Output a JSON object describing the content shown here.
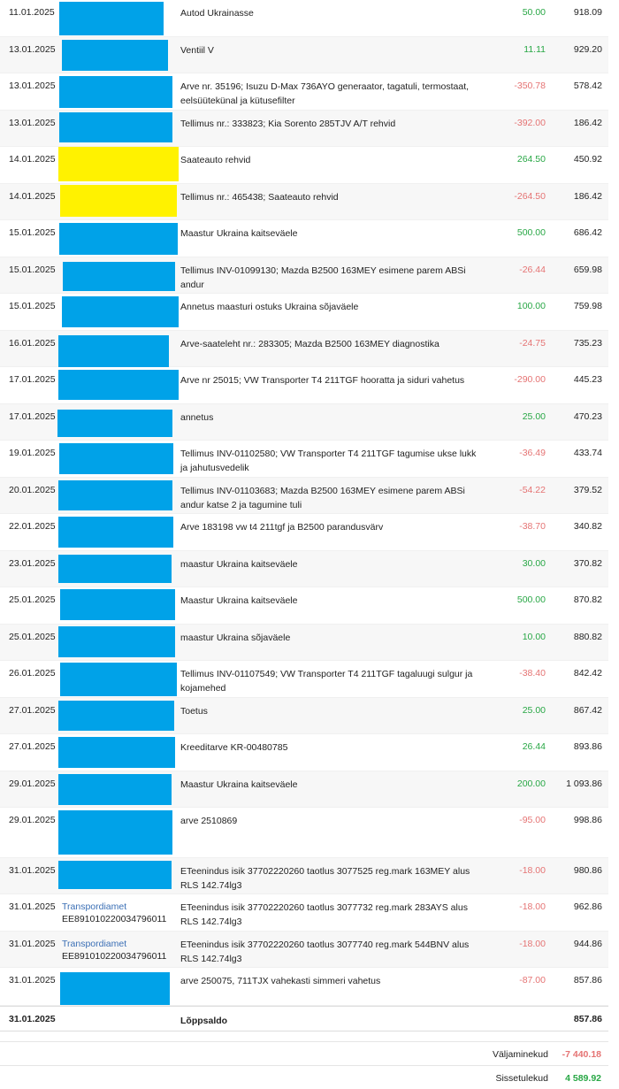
{
  "transactions": [
    {
      "date": "11.01.2025",
      "description": "Autod Ukrainasse",
      "amount": "50.00",
      "direction": "in",
      "balance": "918.09",
      "redaction": "#00a2e8"
    },
    {
      "date": "13.01.2025",
      "description": "Ventiil V",
      "amount": "11.11",
      "direction": "in",
      "balance": "929.20",
      "redaction": "#00a2e8"
    },
    {
      "date": "13.01.2025",
      "description": "Arve nr. 35196; Isuzu D-Max 736AYO generaator, tagatuli, termostaat, eelsüütekünal ja kütusefilter",
      "amount": "-350.78",
      "direction": "out",
      "balance": "578.42",
      "redaction": "#00a2e8"
    },
    {
      "date": "13.01.2025",
      "description": "Tellimus nr.: 333823; Kia Sorento 285TJV A/T rehvid",
      "amount": "-392.00",
      "direction": "out",
      "balance": "186.42",
      "redaction": "#00a2e8"
    },
    {
      "date": "14.01.2025",
      "description": "Saateauto rehvid",
      "amount": "264.50",
      "direction": "in",
      "balance": "450.92",
      "redaction": "#fff200"
    },
    {
      "date": "14.01.2025",
      "description": "Tellimus nr.: 465438; Saateauto rehvid",
      "amount": "-264.50",
      "direction": "out",
      "balance": "186.42",
      "redaction": "#fff200"
    },
    {
      "date": "15.01.2025",
      "description": "Maastur Ukraina kaitseväele",
      "amount": "500.00",
      "direction": "in",
      "balance": "686.42",
      "redaction": "#00a2e8"
    },
    {
      "date": "15.01.2025",
      "description": "Tellimus INV-01099130; Mazda B2500 163MEY esimene parem ABSi andur",
      "amount": "-26.44",
      "direction": "out",
      "balance": "659.98",
      "redaction": "#00a2e8"
    },
    {
      "date": "15.01.2025",
      "description": "Annetus maasturi ostuks Ukraina sõjaväele",
      "amount": "100.00",
      "direction": "in",
      "balance": "759.98",
      "redaction": "#00a2e8"
    },
    {
      "date": "16.01.2025",
      "description": "Arve-saateleht nr.: 283305; Mazda B2500 163MEY diagnostika",
      "amount": "-24.75",
      "direction": "out",
      "balance": "735.23",
      "redaction": "#00a2e8"
    },
    {
      "date": "17.01.2025",
      "description": "Arve nr 25015; VW Transporter T4 211TGF hooratta ja siduri vahetus",
      "amount": "-290.00",
      "direction": "out",
      "balance": "445.23",
      "redaction": "#00a2e8"
    },
    {
      "date": "17.01.2025",
      "description": "annetus",
      "amount": "25.00",
      "direction": "in",
      "balance": "470.23",
      "redaction": "#00a2e8"
    },
    {
      "date": "19.01.2025",
      "description": "Tellimus INV-01102580; VW Transporter T4 211TGF tagumise ukse lukk ja jahutusvedelik",
      "amount": "-36.49",
      "direction": "out",
      "balance": "433.74",
      "redaction": "#00a2e8"
    },
    {
      "date": "20.01.2025",
      "description": "Tellimus INV-01103683; Mazda B2500 163MEY esimene parem ABSi andur katse 2 ja tagumine tuli",
      "amount": "-54.22",
      "direction": "out",
      "balance": "379.52",
      "redaction": "#00a2e8"
    },
    {
      "date": "22.01.2025",
      "description": "Arve 183198 vw t4 211tgf ja B2500 parandusvärv",
      "amount": "-38.70",
      "direction": "out",
      "balance": "340.82",
      "redaction": "#00a2e8"
    },
    {
      "date": "23.01.2025",
      "description": "maastur Ukraina kaitseväele",
      "amount": "30.00",
      "direction": "in",
      "balance": "370.82",
      "redaction": "#00a2e8"
    },
    {
      "date": "25.01.2025",
      "description": "Maastur Ukraina kaitseväele",
      "amount": "500.00",
      "direction": "in",
      "balance": "870.82",
      "redaction": "#00a2e8"
    },
    {
      "date": "25.01.2025",
      "description": "maastur Ukraina sõjaväele",
      "amount": "10.00",
      "direction": "in",
      "balance": "880.82",
      "redaction": "#00a2e8"
    },
    {
      "date": "26.01.2025",
      "description": "Tellimus INV-01107549; VW Transporter T4 211TGF tagaluugi sulgur ja kojamehed",
      "amount": "-38.40",
      "direction": "out",
      "balance": "842.42",
      "redaction": "#00a2e8"
    },
    {
      "date": "27.01.2025",
      "description": "Toetus",
      "amount": "25.00",
      "direction": "in",
      "balance": "867.42",
      "redaction": "#00a2e8"
    },
    {
      "date": "27.01.2025",
      "description": "Kreeditarve KR-00480785",
      "amount": "26.44",
      "direction": "in",
      "balance": "893.86",
      "redaction": "#00a2e8"
    },
    {
      "date": "29.01.2025",
      "description": "Maastur Ukraina kaitseväele",
      "amount": "200.00",
      "direction": "in",
      "balance": "1 093.86",
      "redaction": "#00a2e8"
    },
    {
      "date": "29.01.2025",
      "description": "arve 2510869",
      "amount": "-95.00",
      "direction": "out",
      "balance": "998.86",
      "redaction": "#00a2e8"
    },
    {
      "date": "31.01.2025",
      "description": "ETeenindus isik 37702220260 taotlus 3077525 reg.mark 163MEY alus RLS 142.74lg3",
      "amount": "-18.00",
      "direction": "out",
      "balance": "980.86",
      "redaction": "#00a2e8"
    },
    {
      "date": "31.01.2025",
      "party": "Transpordiamet",
      "account": "EE891010220034796011",
      "description": "ETeenindus isik 37702220260 taotlus 3077732 reg.mark 283AYS alus RLS 142.74lg3",
      "amount": "-18.00",
      "direction": "out",
      "balance": "962.86"
    },
    {
      "date": "31.01.2025",
      "party": "Transpordiamet",
      "account": "EE891010220034796011",
      "description": "ETeenindus isik 37702220260 taotlus 3077740 reg.mark 544BNV alus RLS 142.74lg3",
      "amount": "-18.00",
      "direction": "out",
      "balance": "944.86"
    },
    {
      "date": "31.01.2025",
      "description": "arve 250075, 711TJX vahekasti simmeri vahetus",
      "amount": "-87.00",
      "direction": "out",
      "balance": "857.86",
      "redaction": "#00a2e8"
    }
  ],
  "closing": {
    "date": "31.01.2025",
    "label": "Lõppsaldo",
    "balance": "857.86"
  },
  "summary": {
    "outgoing_label": "Väljaminekud",
    "outgoing_value": "-7 440.18",
    "incoming_label": "Sissetulekud",
    "incoming_value": "4 589.92"
  }
}
